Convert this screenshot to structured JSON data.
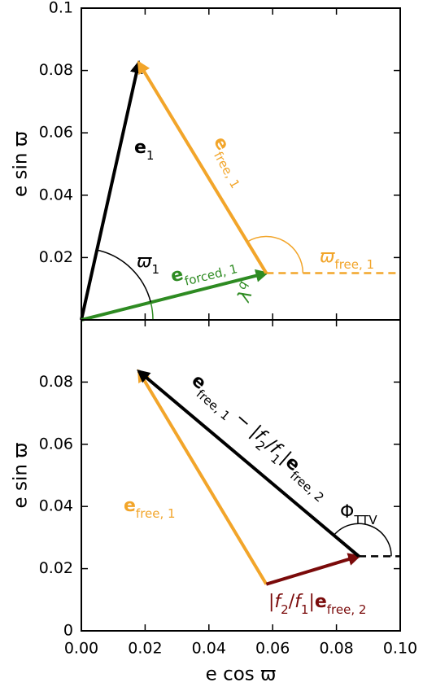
{
  "chart_data": [
    {
      "type": "vector",
      "ylabel": "e sin ϖ",
      "xlim": [
        0,
        0.1
      ],
      "ylim": [
        0,
        0.1
      ],
      "xticks": [
        0,
        0.02,
        0.04,
        0.06,
        0.08,
        0.1
      ],
      "yticks": [
        0.02,
        0.04,
        0.06,
        0.08,
        0.1
      ],
      "series": [
        {
          "label": [
            {
              "text": "e",
              "style": "bold"
            },
            {
              "text": "1",
              "style": "sub"
            }
          ],
          "color": "#000000",
          "style": "arrow",
          "x": [
            0,
            0.018
          ],
          "y": [
            0,
            0.0825
          ]
        },
        {
          "label": [
            {
              "text": "e",
              "style": "bold"
            },
            {
              "text": "forced, 1",
              "style": "sub"
            }
          ],
          "color": "#2e8b22",
          "style": "arrow",
          "x": [
            0,
            0.058
          ],
          "y": [
            0,
            0.015
          ]
        },
        {
          "label": [
            {
              "text": "e",
              "style": "bold"
            },
            {
              "text": "free, 1",
              "style": "sub"
            }
          ],
          "color": "#f2a52a",
          "style": "arrow",
          "x": [
            0.058,
            0.018
          ],
          "y": [
            0.015,
            0.0825
          ]
        },
        {
          "color": "#f2a52a",
          "style": "dashed",
          "x": [
            0.058,
            0.1
          ],
          "y": [
            0.015,
            0.015
          ]
        }
      ],
      "annotations": [
        {
          "label": [
            {
              "text": "ϖ",
              "style": "italic"
            },
            {
              "text": "1",
              "style": "sub"
            }
          ],
          "color": "#000000"
        },
        {
          "label": [
            {
              "text": "λ",
              "style": "italic"
            },
            {
              "text": "q",
              "style": "sup"
            }
          ],
          "color": "#2e8b22"
        },
        {
          "label": [
            {
              "text": "ϖ",
              "style": "italic"
            },
            {
              "text": "free, 1",
              "style": "sub"
            }
          ],
          "color": "#f2a52a"
        }
      ]
    },
    {
      "type": "vector",
      "xlabel": "e cos ϖ",
      "ylabel": "e sin ϖ",
      "xlim": [
        0,
        0.1
      ],
      "ylim": [
        0,
        0.1
      ],
      "xticks": [
        {
          "value": 0,
          "label": "0.00"
        },
        0.02,
        0.04,
        0.06,
        0.08,
        {
          "value": 0.1,
          "label": "0.10"
        }
      ],
      "yticks": [
        0,
        0.02,
        0.04,
        0.06,
        0.08
      ],
      "series": [
        {
          "label": [
            {
              "text": "e",
              "style": "bold"
            },
            {
              "text": "free, 1",
              "style": "sub"
            }
          ],
          "color": "#f2a52a",
          "style": "arrow",
          "x": [
            0.058,
            0.018
          ],
          "y": [
            0.015,
            0.0835
          ]
        },
        {
          "label": [
            {
              "text": "|",
              "style": "normal"
            },
            {
              "text": "f",
              "style": "italic"
            },
            {
              "text": "2",
              "style": "sub"
            },
            {
              "text": "/",
              "style": "normal"
            },
            {
              "text": "f",
              "style": "italic"
            },
            {
              "text": "1",
              "style": "sub"
            },
            {
              "text": "|",
              "style": "normal"
            },
            {
              "text": "e",
              "style": "bold"
            },
            {
              "text": "free, 2",
              "style": "sub"
            }
          ],
          "color": "#7a0a0a",
          "style": "arrow",
          "x": [
            0.058,
            0.087
          ],
          "y": [
            0.015,
            0.024
          ]
        },
        {
          "label": [
            {
              "text": "e",
              "style": "bold"
            },
            {
              "text": "free, 1",
              "style": "sub"
            },
            {
              "text": " − |",
              "style": "normal"
            },
            {
              "text": "f",
              "style": "italic"
            },
            {
              "text": "2",
              "style": "sub"
            },
            {
              "text": "/",
              "style": "normal"
            },
            {
              "text": "f",
              "style": "italic"
            },
            {
              "text": "1",
              "style": "sub"
            },
            {
              "text": "|",
              "style": "normal"
            },
            {
              "text": "e",
              "style": "bold"
            },
            {
              "text": "free, 2",
              "style": "sub"
            }
          ],
          "color": "#000000",
          "style": "arrow",
          "x": [
            0.087,
            0.018
          ],
          "y": [
            0.024,
            0.0835
          ]
        },
        {
          "color": "#000000",
          "style": "dashed",
          "x": [
            0.087,
            0.1
          ],
          "y": [
            0.024,
            0.024
          ]
        }
      ],
      "annotations": [
        {
          "label": [
            {
              "text": "Φ",
              "style": "normal"
            },
            {
              "text": "TTV",
              "style": "sub"
            }
          ],
          "color": "#000000"
        }
      ]
    }
  ]
}
